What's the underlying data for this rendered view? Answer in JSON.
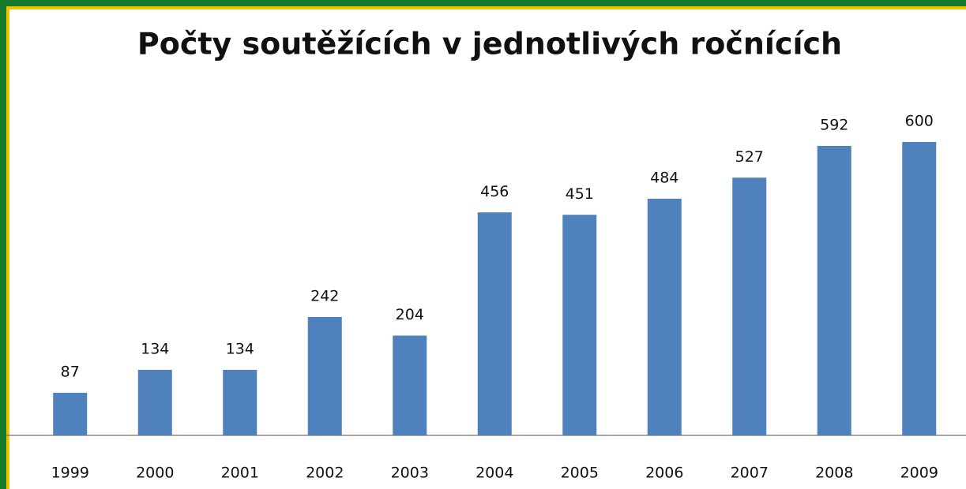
{
  "chart_data": {
    "type": "bar",
    "title": "Počty soutěžících v jednotlivých ročnících",
    "categories": [
      "1999",
      "2000",
      "2001",
      "2002",
      "2003",
      "2004",
      "2005",
      "2006",
      "2007",
      "2008",
      "2009"
    ],
    "values": [
      87,
      134,
      134,
      242,
      204,
      456,
      451,
      484,
      527,
      592,
      600
    ],
    "color": "#4f81bd"
  }
}
